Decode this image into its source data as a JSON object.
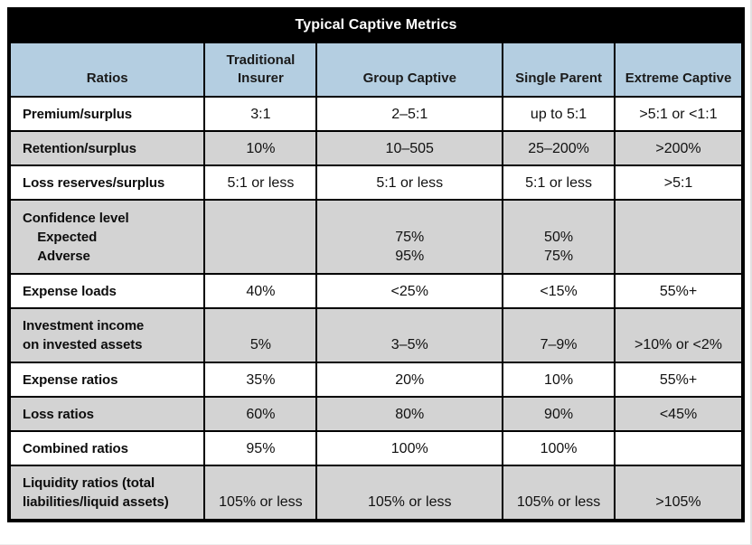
{
  "title": "Typical Captive Metrics",
  "colors": {
    "header_bg": "#b4cee1",
    "row_gray": "#d3d3d3",
    "row_white": "#ffffff",
    "title_bg": "#000000",
    "title_fg": "#ffffff",
    "border": "#000000"
  },
  "table": {
    "columns": [
      "Ratios",
      "Traditional\nInsurer",
      "Group Captive",
      "Single Parent",
      "Extreme Captive"
    ],
    "rows": [
      {
        "label": "Premium/surplus",
        "values": [
          "3:1",
          "2–5:1",
          "up to 5:1",
          ">5:1 or <1:1"
        ],
        "shade": "white"
      },
      {
        "label": "Retention/surplus",
        "values": [
          "10%",
          "10–505",
          "25–200%",
          ">200%"
        ],
        "shade": "gray"
      },
      {
        "label": "Loss reserves/surplus",
        "values": [
          "5:1 or less",
          "5:1 or less",
          "5:1 or less",
          ">5:1"
        ],
        "shade": "white"
      },
      {
        "label": "Confidence level\n    Expected\n    Adverse",
        "values": [
          "",
          "\n75%\n95%",
          "\n50%\n75%",
          ""
        ],
        "shade": "gray"
      },
      {
        "label": "Expense loads",
        "values": [
          "40%",
          "<25%",
          "<15%",
          "55%+"
        ],
        "shade": "white"
      },
      {
        "label": "Investment income\non invested assets",
        "values": [
          "\n5%",
          "\n3–5%",
          "\n7–9%",
          "\n>10% or <2%"
        ],
        "shade": "gray"
      },
      {
        "label": "Expense ratios",
        "values": [
          "35%",
          "20%",
          "10%",
          "55%+"
        ],
        "shade": "white"
      },
      {
        "label": "Loss ratios",
        "values": [
          "60%",
          "80%",
          "90%",
          "<45%"
        ],
        "shade": "gray"
      },
      {
        "label": "Combined ratios",
        "values": [
          "95%",
          "100%",
          "100%",
          ""
        ],
        "shade": "white"
      },
      {
        "label": "Liquidity ratios (total\nliabilities/liquid assets)",
        "values": [
          "\n105% or less",
          "\n105% or less",
          "\n105% or less",
          "\n>105%"
        ],
        "shade": "gray"
      }
    ]
  }
}
